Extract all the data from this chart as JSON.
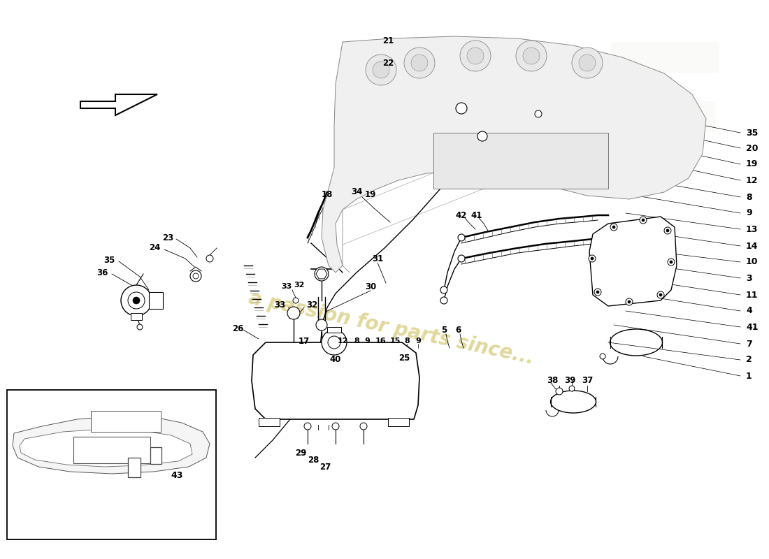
{
  "bg": "#ffffff",
  "lc": "#000000",
  "wm_color": "#c8b84a",
  "wm_text": "a passion for parts since...",
  "right_labels": [
    [
      1065,
      645,
      "35"
    ],
    [
      1065,
      620,
      "20"
    ],
    [
      1065,
      595,
      "19"
    ],
    [
      1065,
      570,
      "12"
    ],
    [
      1065,
      545,
      "8"
    ],
    [
      1065,
      520,
      "9"
    ],
    [
      1065,
      495,
      "13"
    ],
    [
      1065,
      470,
      "14"
    ],
    [
      1065,
      445,
      "10"
    ],
    [
      1065,
      420,
      "3"
    ],
    [
      1065,
      395,
      "11"
    ],
    [
      1065,
      370,
      "4"
    ],
    [
      1065,
      345,
      "41"
    ],
    [
      1065,
      320,
      "7"
    ],
    [
      1065,
      295,
      "2"
    ],
    [
      1065,
      270,
      "1"
    ]
  ]
}
